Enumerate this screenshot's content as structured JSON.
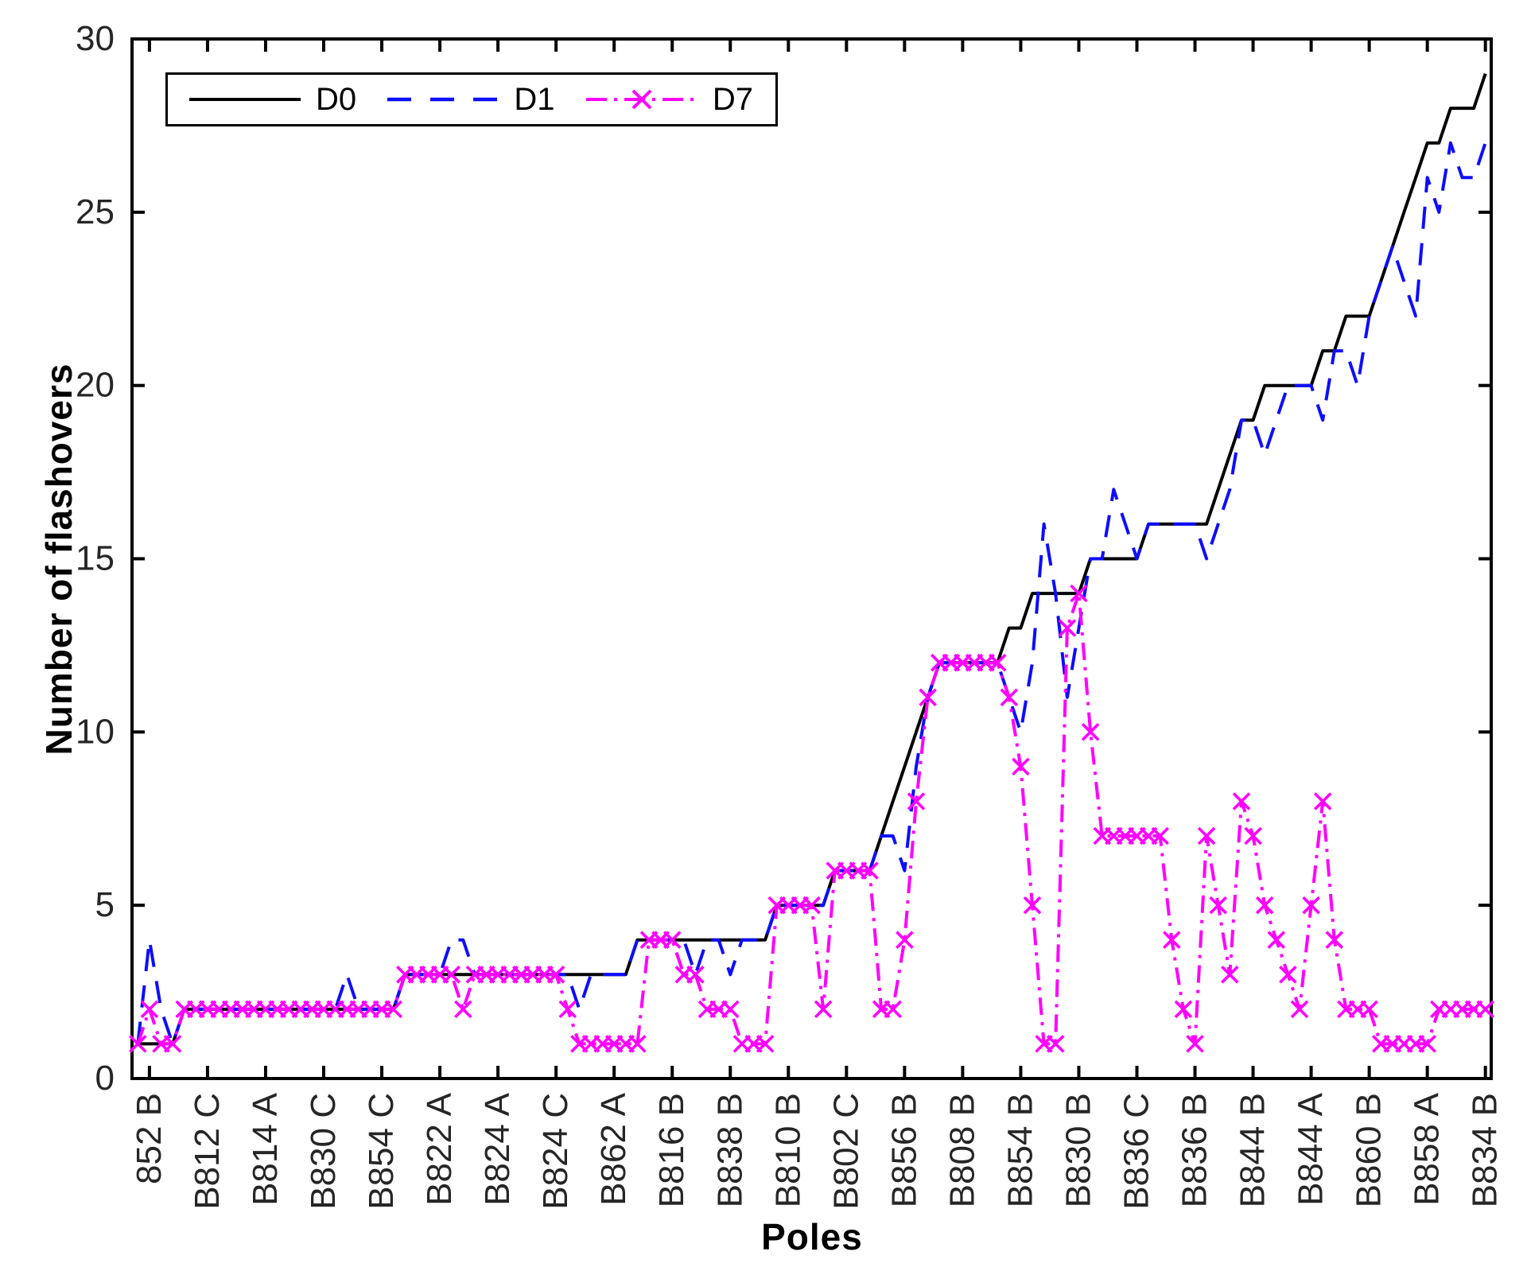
{
  "chart_data": {
    "type": "line",
    "title": "",
    "xlabel": "Poles",
    "ylabel": "Number of flashovers",
    "ylim": [
      0,
      30
    ],
    "yticks": [
      0,
      5,
      10,
      15,
      20,
      25,
      30
    ],
    "grid": false,
    "legend_position": "top-left",
    "tick_label_color": "#262626",
    "x_tick_labels": [
      "852 B",
      "B812 C",
      "B814 A",
      "B830 C",
      "B854 C",
      "B822 A",
      "B824 A",
      "B824 C",
      "B862 A",
      "B816 B",
      "B838 B",
      "B810 B",
      "B802 C",
      "B856 B",
      "B808 B",
      "B854 B",
      "B830 B",
      "B836 C",
      "B836 B",
      "B844 B",
      "B844 A",
      "B860 B",
      "B858 A",
      "B834 B"
    ],
    "x_tick_every": 5,
    "x_tick_first_index": 2,
    "n_points": 117,
    "series": [
      {
        "name": "D0",
        "color": "#000000",
        "style": "solid",
        "marker": "none",
        "values": [
          1,
          1,
          1,
          1,
          2,
          2,
          2,
          2,
          2,
          2,
          2,
          2,
          2,
          2,
          2,
          2,
          2,
          2,
          2,
          2,
          2,
          2,
          2,
          3,
          3,
          3,
          3,
          3,
          3,
          3,
          3,
          3,
          3,
          3,
          3,
          3,
          3,
          3,
          3,
          3,
          3,
          3,
          3,
          4,
          4,
          4,
          4,
          4,
          4,
          4,
          4,
          4,
          4,
          4,
          4,
          5,
          5,
          5,
          5,
          5,
          6,
          6,
          6,
          6,
          7,
          8,
          9,
          10,
          11,
          12,
          12,
          12,
          12,
          12,
          12,
          13,
          13,
          14,
          14,
          14,
          14,
          14,
          15,
          15,
          15,
          15,
          15,
          16,
          16,
          16,
          16,
          16,
          16,
          17,
          18,
          19,
          19,
          20,
          20,
          20,
          20,
          20,
          21,
          21,
          22,
          22,
          22,
          23,
          24,
          25,
          26,
          27,
          27,
          28,
          28,
          28,
          29
        ]
      },
      {
        "name": "D1",
        "color": "#0d0dff",
        "style": "dashed",
        "marker": "none",
        "values": [
          1,
          4,
          2,
          1,
          2,
          2,
          2,
          2,
          2,
          2,
          2,
          2,
          2,
          2,
          2,
          2,
          2,
          2,
          3,
          2,
          2,
          2,
          2,
          3,
          3,
          3,
          3,
          4,
          4,
          3,
          3,
          3,
          3,
          3,
          3,
          3,
          3,
          3,
          2,
          3,
          3,
          3,
          3,
          4,
          4,
          4,
          4,
          4,
          3,
          4,
          4,
          3,
          4,
          4,
          4,
          5,
          5,
          5,
          5,
          5,
          6,
          6,
          6,
          6,
          7,
          7,
          6,
          9,
          11,
          12,
          12,
          12,
          12,
          12,
          12,
          11,
          10,
          12,
          16,
          14,
          11,
          13,
          15,
          15,
          17,
          16,
          15,
          16,
          16,
          16,
          16,
          16,
          15,
          16,
          17,
          19,
          19,
          18,
          19,
          20,
          20,
          20,
          19,
          21,
          21,
          20,
          22,
          23,
          24,
          23,
          22,
          26,
          25,
          27,
          26,
          26,
          27
        ]
      },
      {
        "name": "D7",
        "color": "#ff00ff",
        "style": "dashdot",
        "marker": "x",
        "values": [
          1,
          2,
          1,
          1,
          2,
          2,
          2,
          2,
          2,
          2,
          2,
          2,
          2,
          2,
          2,
          2,
          2,
          2,
          2,
          2,
          2,
          2,
          2,
          3,
          3,
          3,
          3,
          3,
          2,
          3,
          3,
          3,
          3,
          3,
          3,
          3,
          3,
          2,
          1,
          1,
          1,
          1,
          1,
          1,
          4,
          4,
          4,
          3,
          3,
          2,
          2,
          2,
          1,
          1,
          1,
          5,
          5,
          5,
          5,
          2,
          6,
          6,
          6,
          6,
          2,
          2,
          4,
          8,
          11,
          12,
          12,
          12,
          12,
          12,
          12,
          11,
          9,
          5,
          1,
          1,
          13,
          14,
          10,
          7,
          7,
          7,
          7,
          7,
          7,
          4,
          2,
          1,
          7,
          5,
          3,
          8,
          7,
          5,
          4,
          3,
          2,
          5,
          8,
          4,
          2,
          2,
          2,
          1,
          1,
          1,
          1,
          1,
          2,
          2,
          2,
          2,
          2
        ]
      }
    ]
  }
}
